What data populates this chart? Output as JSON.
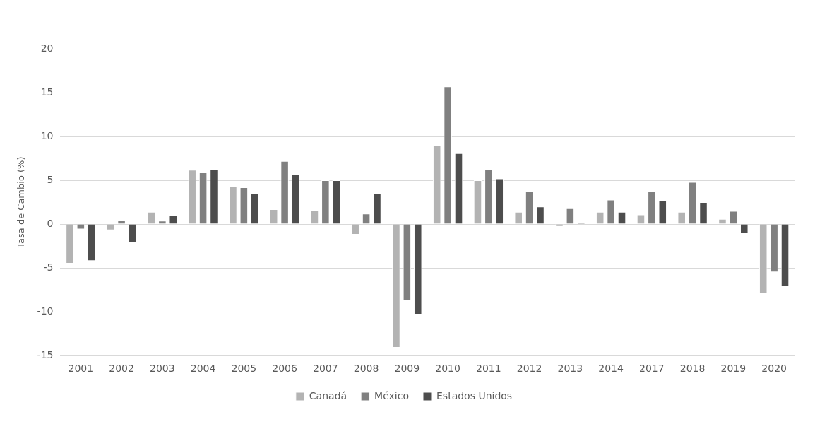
{
  "chart_data": {
    "type": "bar",
    "ylabel": "Tasa de Cambio (%)",
    "categories": [
      "2001",
      "2002",
      "2003",
      "2004",
      "2005",
      "2006",
      "2007",
      "2008",
      "2009",
      "2010",
      "2011",
      "2012",
      "2013",
      "2014",
      "2017",
      "2018",
      "2019",
      "2020"
    ],
    "series": [
      {
        "name": "Canadá",
        "color": "#b3b3b3",
        "values": [
          -4.5,
          -0.7,
          1.4,
          6.2,
          4.3,
          1.7,
          1.6,
          -1.2,
          -14.1,
          9.0,
          5.0,
          1.4,
          -0.3,
          1.4,
          1.1,
          1.4,
          0.6,
          -7.9
        ]
      },
      {
        "name": "México",
        "color": "#808080",
        "values": [
          -0.6,
          0.5,
          0.4,
          5.9,
          4.2,
          7.2,
          5.0,
          1.2,
          -8.7,
          15.7,
          6.3,
          3.8,
          1.8,
          2.8,
          3.8,
          4.8,
          1.5,
          -5.5
        ]
      },
      {
        "name": "Estados Unidos",
        "color": "#4d4d4d",
        "values": [
          -4.2,
          -2.1,
          1.0,
          6.3,
          3.5,
          5.7,
          5.0,
          3.5,
          -10.3,
          8.1,
          5.2,
          2.0,
          0.2,
          1.4,
          2.7,
          2.5,
          -1.1,
          -7.1
        ]
      }
    ],
    "ylim": [
      -15,
      20
    ],
    "yticks": [
      -15,
      -10,
      -5,
      0,
      5,
      10,
      15,
      20
    ],
    "grid": "y",
    "legend": "bottom"
  }
}
